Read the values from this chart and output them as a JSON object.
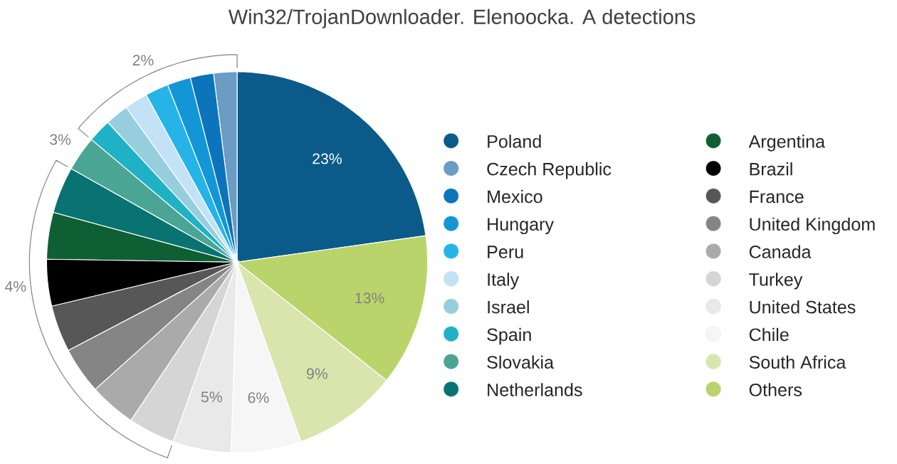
{
  "chart_data": {
    "type": "pie",
    "title": "Win32/TrojanDownloader. Elenoocka. A detections",
    "categories": [
      "Poland",
      "Czech Republic",
      "Mexico",
      "Hungary",
      "Peru",
      "Italy",
      "Israel",
      "Spain",
      "Slovakia",
      "Netherlands",
      "Argentina",
      "Brazil",
      "France",
      "United Kingdom",
      "Canada",
      "Turkey",
      "United States",
      "Chile",
      "South Africa",
      "Others"
    ],
    "values": [
      23,
      2,
      2,
      2,
      2,
      2,
      2,
      2,
      3,
      4,
      4,
      4,
      4,
      4,
      4,
      4,
      5,
      6,
      9,
      13
    ],
    "value_labels": [
      "23%",
      null,
      null,
      null,
      "2%",
      null,
      null,
      null,
      "3%",
      null,
      null,
      "4%",
      null,
      null,
      null,
      null,
      "5%",
      "6%",
      "9%",
      "13%"
    ],
    "colors": [
      "#0b5a8a",
      "#6a9cc4",
      "#0c74bb",
      "#1496d6",
      "#26b4e8",
      "#c4e2f5",
      "#97cedd",
      "#1fb1c6",
      "#4aa595",
      "#087370",
      "#0f5f35",
      "#000000",
      "#575757",
      "#858585",
      "#aaaaaa",
      "#d5d5d5",
      "#e9e9e9",
      "#f6f6f6",
      "#d9e5ad",
      "#b9d46b"
    ],
    "legend": "right"
  }
}
